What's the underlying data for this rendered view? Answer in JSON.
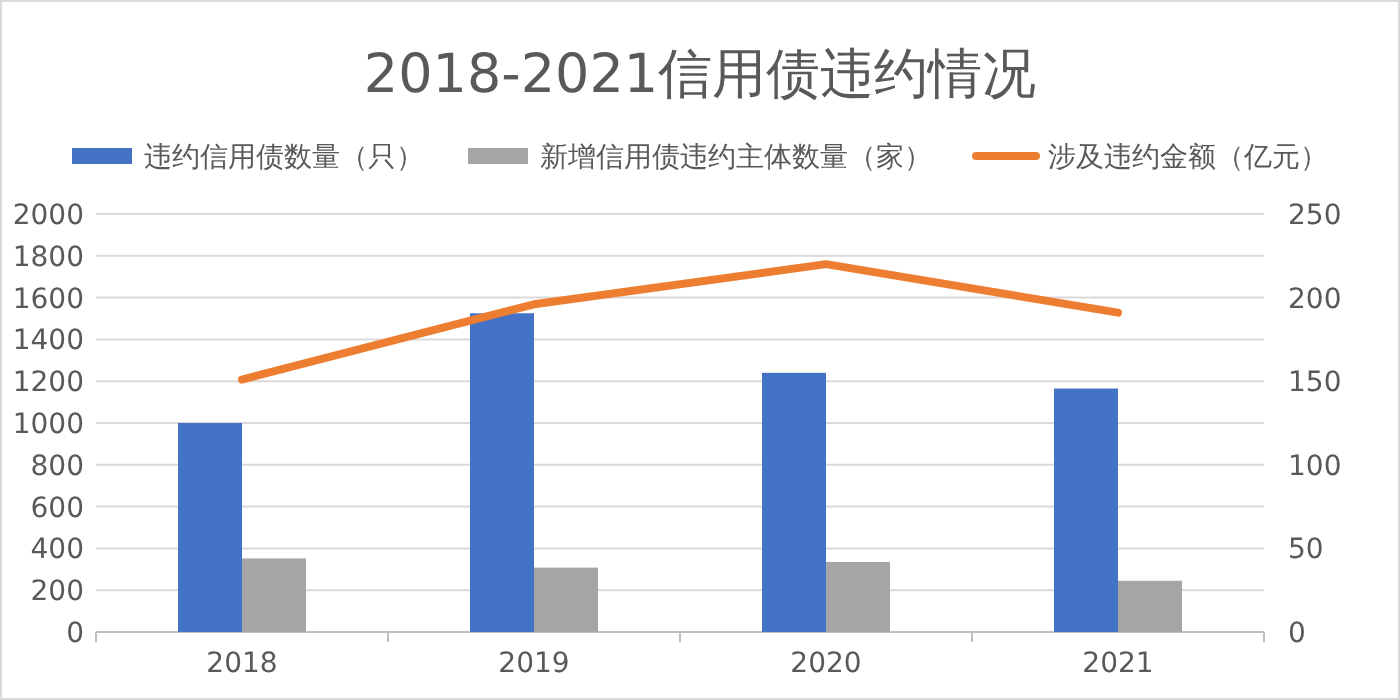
{
  "chart_data": {
    "type": "bar",
    "title": "2018-2021信用债违约情况",
    "categories": [
      "2018",
      "2019",
      "2020",
      "2021"
    ],
    "series": [
      {
        "name": "违约信用债数量（只）",
        "color": "#4472c4",
        "values": [
          1000,
          1525,
          1240,
          1165
        ]
      },
      {
        "name": "新增信用债违约主体数量（家）",
        "color": "#a5a5a5",
        "values": [
          352,
          308,
          335,
          245
        ]
      },
      {
        "name": "涉及违约金额（亿元）",
        "color": "#ed7d31",
        "type": "line",
        "axis": "y2",
        "values": [
          151,
          196,
          220,
          191
        ]
      }
    ],
    "ylim": [
      0,
      2000
    ],
    "yticks": [
      0,
      200,
      400,
      600,
      800,
      1000,
      1200,
      1400,
      1600,
      1800,
      2000
    ],
    "y2lim": [
      0,
      250
    ],
    "y2ticks": [
      0,
      50,
      100,
      150,
      200,
      250
    ],
    "grid": "y",
    "legend": "top"
  }
}
